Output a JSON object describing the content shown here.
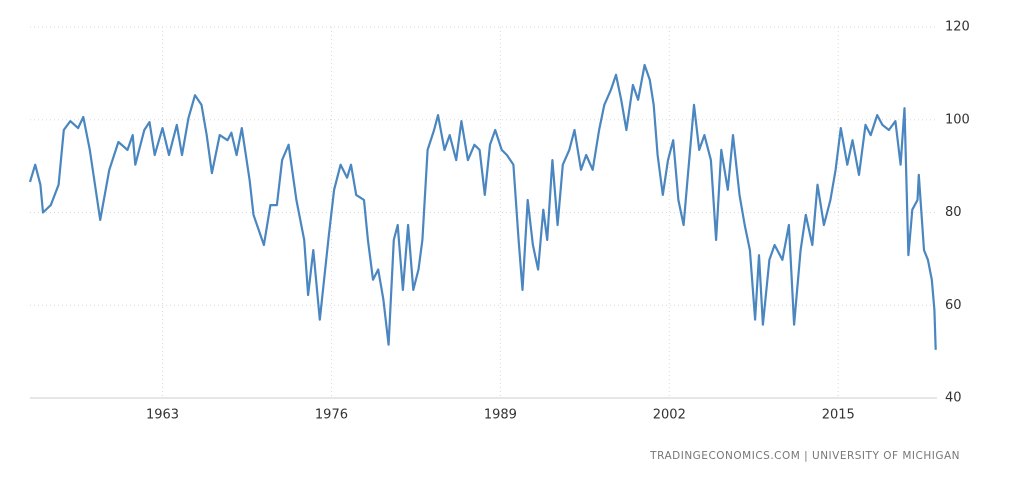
{
  "chart_data": {
    "type": "line",
    "source": "TRADINGECONOMICS.COM | UNIVERSITY OF MICHIGAN",
    "xlim": [
      1952.8,
      2022.6
    ],
    "xticks": [
      1963,
      1976,
      1989,
      2002,
      2015
    ],
    "ylim": [
      40,
      120
    ],
    "yticks": [
      40,
      60,
      80,
      100,
      120
    ],
    "grid": true,
    "series": [
      {
        "color": "#4a86bf",
        "x": [
          1952.8,
          1953.2,
          1953.6,
          1953.8,
          1954.4,
          1955,
          1955.4,
          1955.9,
          1956.5,
          1956.9,
          1957.4,
          1958.2,
          1958.9,
          1959.6,
          1960.3,
          1960.7,
          1960.9,
          1961.6,
          1962,
          1962.4,
          1963,
          1963.5,
          1964.1,
          1964.5,
          1965,
          1965.5,
          1966,
          1966.4,
          1966.8,
          1967.4,
          1968,
          1968.3,
          1968.7,
          1969.1,
          1969.7,
          1970,
          1970.8,
          1971.3,
          1971.8,
          1972.2,
          1972.7,
          1973.3,
          1973.9,
          1974.2,
          1974.6,
          1975.1,
          1975.8,
          1976.2,
          1976.7,
          1977.2,
          1977.5,
          1977.9,
          1978.5,
          1978.8,
          1979.2,
          1979.6,
          1980,
          1980.4,
          1980.8,
          1981.1,
          1981.5,
          1981.9,
          1982.3,
          1982.7,
          1983,
          1983.4,
          1983.9,
          1984.2,
          1984.7,
          1985.1,
          1985.6,
          1986,
          1986.5,
          1987,
          1987.4,
          1987.8,
          1988.2,
          1988.6,
          1989.1,
          1989.5,
          1990,
          1990.4,
          1990.7,
          1991.1,
          1991.5,
          1991.9,
          1992.3,
          1992.6,
          1993,
          1993.4,
          1993.8,
          1994.3,
          1994.7,
          1995.2,
          1995.6,
          1996.1,
          1996.6,
          1997,
          1997.5,
          1997.9,
          1998.3,
          1998.7,
          1999.2,
          1999.6,
          2000.1,
          2000.5,
          2000.8,
          2001.1,
          2001.5,
          2001.9,
          2002.3,
          2002.7,
          2003.1,
          2003.5,
          2003.9,
          2004.3,
          2004.7,
          2005.2,
          2005.6,
          2006,
          2006.5,
          2006.9,
          2007.4,
          2007.8,
          2008.2,
          2008.6,
          2008.9,
          2009.2,
          2009.7,
          2010.1,
          2010.7,
          2011.2,
          2011.6,
          2012.1,
          2012.5,
          2013,
          2013.4,
          2013.9,
          2014.4,
          2014.8,
          2015.2,
          2015.7,
          2016.1,
          2016.6,
          2017.1,
          2017.5,
          2018,
          2018.4,
          2018.9,
          2019.4,
          2019.8,
          2020.1,
          2020.4,
          2020.7,
          2021.1,
          2021.2,
          2021.6,
          2021.9,
          2022.2,
          2022.4,
          2022.5
        ],
        "values": [
          86.6,
          90.3,
          86,
          80,
          81.6,
          86,
          97.8,
          99.7,
          98.2,
          100.6,
          93.5,
          78.4,
          89.2,
          95.2,
          93.5,
          96.7,
          90.3,
          97.8,
          99.5,
          92.4,
          98.2,
          92.4,
          98.9,
          92.4,
          100.4,
          105.3,
          103.2,
          96.7,
          88.5,
          96.7,
          95.6,
          97.2,
          92.4,
          98.2,
          87,
          79.5,
          73,
          81.6,
          81.6,
          91.3,
          94.6,
          82.7,
          74.1,
          62.2,
          71.9,
          56.9,
          75.2,
          84.9,
          90.3,
          87.5,
          90.3,
          83.8,
          82.7,
          74.1,
          65.5,
          67.7,
          61.2,
          51.5,
          74.1,
          77.3,
          63.3,
          77.3,
          63.3,
          67.7,
          74.1,
          93.5,
          97.8,
          101,
          93.5,
          96.7,
          91.3,
          99.7,
          91.3,
          94.6,
          93.5,
          83.8,
          94.6,
          97.8,
          93.5,
          92.4,
          90.3,
          74.1,
          63.3,
          82.7,
          73,
          67.7,
          80.6,
          74.1,
          91.3,
          77.3,
          90.3,
          93.5,
          97.8,
          89.2,
          92.4,
          89.2,
          97.8,
          103.2,
          106.4,
          109.7,
          104.3,
          97.8,
          107.5,
          104.3,
          111.8,
          108.6,
          103.2,
          92.4,
          83.8,
          91.3,
          95.6,
          82.7,
          77.3,
          90.3,
          103.2,
          93.5,
          96.7,
          91.3,
          74.1,
          93.5,
          84.9,
          96.7,
          83.8,
          77.3,
          71.9,
          56.9,
          70.8,
          55.8,
          69.8,
          73,
          69.8,
          77.3,
          55.8,
          71.9,
          79.5,
          73,
          86,
          77.3,
          82.7,
          89.2,
          98.2,
          90.3,
          95.6,
          88.1,
          98.9,
          96.7,
          101,
          98.9,
          97.8,
          99.7,
          90.3,
          102.5,
          70.8,
          80.6,
          82.7,
          88.1,
          71.9,
          69.8,
          65.5,
          59,
          50.4
        ]
      }
    ]
  }
}
